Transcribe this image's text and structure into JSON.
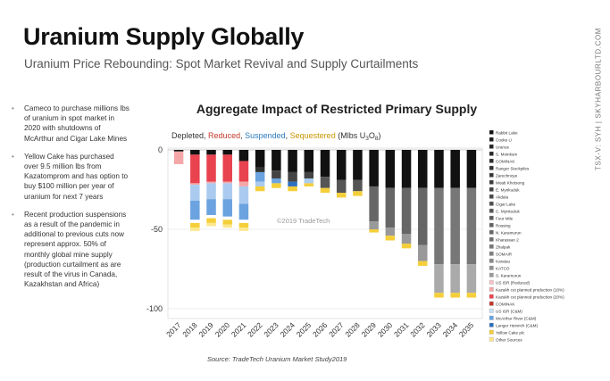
{
  "slide": {
    "title": "Uranium Supply Globally",
    "subtitle": "Uranium Price Rebounding: Spot Market Revival and Supply Curtailments",
    "side_label": "TSX-V: SYH  |  SKYHARBOURLTD.COM",
    "bullets": [
      "Cameco to purchase millions lbs of uranium in spot market in 2020 with shutdowns of McArthur and Cigar Lake Mines",
      "Yellow Cake has purchased over 9.5 million lbs from Kazatomprom and has option to buy $100 million per year of uranium for next 7 years",
      "Recent production suspensions as a result of the pandemic in additional to previous cuts now represent approx. 50% of monthly global mine supply (production curtailment as are result of the virus in Canada, Kazakhstan and Africa)"
    ],
    "source": "Source: TradeTech Uranium Market Study2019"
  },
  "chart_data": {
    "type": "bar",
    "title": "Aggregate Impact of Restricted Primary Supply",
    "header_words": [
      {
        "text": "Depleted",
        "color": "#333333"
      },
      {
        "text": ", ",
        "color": "#333333"
      },
      {
        "text": "Reduced",
        "color": "#c0392b"
      },
      {
        "text": ", ",
        "color": "#333333"
      },
      {
        "text": "Suspended",
        "color": "#2e7bbf"
      },
      {
        "text": ", ",
        "color": "#333333"
      },
      {
        "text": "Sequestered",
        "color": "#c89400"
      },
      {
        "text": " (Mlbs U",
        "color": "#333333"
      }
    ],
    "header_unit_sub": "3",
    "header_unit_after": "O",
    "header_unit_sub2": "8",
    "header_close": ")",
    "watermark": "©2019 TradeTech",
    "categories": [
      "2017",
      "2018",
      "2019",
      "2020",
      "2021",
      "2022",
      "2023",
      "2024",
      "2025",
      "2026",
      "2027",
      "2028",
      "2029",
      "2030",
      "2031",
      "2032",
      "2033",
      "2034",
      "2035"
    ],
    "yticks": [
      0,
      -50,
      -100
    ],
    "ylim": [
      -105,
      5
    ],
    "segments": [
      [
        {
          "v": 1,
          "c": "#111111"
        },
        {
          "v": 8,
          "c": "#f4a7a9"
        }
      ],
      [
        {
          "v": 3,
          "c": "#111111"
        },
        {
          "v": 18,
          "c": "#e8434f"
        },
        {
          "v": 1,
          "c": "#f4a7a9"
        },
        {
          "v": 10,
          "c": "#aacbef"
        },
        {
          "v": 12,
          "c": "#6aa3e0"
        },
        {
          "v": 2,
          "c": "#ffffff"
        },
        {
          "v": 3,
          "c": "#f4cf3a"
        },
        {
          "v": 2,
          "c": "#fce78a"
        }
      ],
      [
        {
          "v": 3,
          "c": "#111111"
        },
        {
          "v": 17,
          "c": "#e8434f"
        },
        {
          "v": 1,
          "c": "#f4a7a9"
        },
        {
          "v": 10,
          "c": "#aacbef"
        },
        {
          "v": 10,
          "c": "#6aa3e0"
        },
        {
          "v": 2,
          "c": "#ffffff"
        },
        {
          "v": 3,
          "c": "#f4cf3a"
        },
        {
          "v": 2,
          "c": "#fce78a"
        }
      ],
      [
        {
          "v": 3,
          "c": "#111111"
        },
        {
          "v": 17,
          "c": "#e8434f"
        },
        {
          "v": 1,
          "c": "#f4a7a9"
        },
        {
          "v": 10,
          "c": "#aacbef"
        },
        {
          "v": 11,
          "c": "#6aa3e0"
        },
        {
          "v": 2,
          "c": "#ffffff"
        },
        {
          "v": 3,
          "c": "#f4cf3a"
        },
        {
          "v": 2,
          "c": "#fce78a"
        }
      ],
      [
        {
          "v": 7,
          "c": "#111111"
        },
        {
          "v": 13,
          "c": "#e8434f"
        },
        {
          "v": 3,
          "c": "#f4a7a9"
        },
        {
          "v": 11,
          "c": "#aacbef"
        },
        {
          "v": 10,
          "c": "#6aa3e0"
        },
        {
          "v": 2,
          "c": "#ffffff"
        },
        {
          "v": 3,
          "c": "#f4cf3a"
        },
        {
          "v": 2,
          "c": "#fce78a"
        }
      ],
      [
        {
          "v": 11,
          "c": "#111111"
        },
        {
          "v": 3,
          "c": "#333333"
        },
        {
          "v": 6,
          "c": "#6aa3e0"
        },
        {
          "v": 3,
          "c": "#aacbef"
        },
        {
          "v": 3,
          "c": "#f4cf3a"
        }
      ],
      [
        {
          "v": 13,
          "c": "#111111"
        },
        {
          "v": 5,
          "c": "#444444"
        },
        {
          "v": 3,
          "c": "#6aa3e0"
        },
        {
          "v": 3,
          "c": "#f4cf3a"
        }
      ],
      [
        {
          "v": 14,
          "c": "#111111"
        },
        {
          "v": 6,
          "c": "#444444"
        },
        {
          "v": 3,
          "c": "#2e6fbf"
        },
        {
          "v": 3,
          "c": "#f4cf3a"
        }
      ],
      [
        {
          "v": 14,
          "c": "#111111"
        },
        {
          "v": 4,
          "c": "#444444"
        },
        {
          "v": 3,
          "c": "#aacbef"
        },
        {
          "v": 2,
          "c": "#f4cf3a"
        }
      ],
      [
        {
          "v": 17,
          "c": "#111111"
        },
        {
          "v": 7,
          "c": "#555555"
        },
        {
          "v": 3,
          "c": "#f4cf3a"
        }
      ],
      [
        {
          "v": 19,
          "c": "#111111"
        },
        {
          "v": 8,
          "c": "#555555"
        },
        {
          "v": 3,
          "c": "#f4cf3a"
        }
      ],
      [
        {
          "v": 19,
          "c": "#111111"
        },
        {
          "v": 7,
          "c": "#555555"
        },
        {
          "v": 3,
          "c": "#f4cf3a"
        }
      ],
      [
        {
          "v": 23,
          "c": "#111111"
        },
        {
          "v": 22,
          "c": "#666666"
        },
        {
          "v": 5,
          "c": "#999999"
        },
        {
          "v": 2,
          "c": "#f4cf3a"
        }
      ],
      [
        {
          "v": 24,
          "c": "#111111"
        },
        {
          "v": 25,
          "c": "#666666"
        },
        {
          "v": 5,
          "c": "#999999"
        },
        {
          "v": 3,
          "c": "#f4cf3a"
        }
      ],
      [
        {
          "v": 24,
          "c": "#111111"
        },
        {
          "v": 29,
          "c": "#666666"
        },
        {
          "v": 6,
          "c": "#999999"
        },
        {
          "v": 3,
          "c": "#f4cf3a"
        }
      ],
      [
        {
          "v": 24,
          "c": "#111111"
        },
        {
          "v": 36,
          "c": "#666666"
        },
        {
          "v": 10,
          "c": "#999999"
        },
        {
          "v": 3,
          "c": "#f4cf3a"
        }
      ],
      [
        {
          "v": 24,
          "c": "#111111"
        },
        {
          "v": 48,
          "c": "#777777"
        },
        {
          "v": 18,
          "c": "#aaaaaa"
        },
        {
          "v": 3,
          "c": "#f4cf3a"
        }
      ],
      [
        {
          "v": 24,
          "c": "#111111"
        },
        {
          "v": 48,
          "c": "#777777"
        },
        {
          "v": 18,
          "c": "#aaaaaa"
        },
        {
          "v": 3,
          "c": "#f4cf3a"
        }
      ],
      [
        {
          "v": 24,
          "c": "#111111"
        },
        {
          "v": 48,
          "c": "#777777"
        },
        {
          "v": 18,
          "c": "#aaaaaa"
        },
        {
          "v": 3,
          "c": "#f4cf3a"
        }
      ]
    ],
    "legend": [
      {
        "name": "Rabbit Lake",
        "color": "#111111"
      },
      {
        "name": "Cooke U",
        "color": "#1a1a1a"
      },
      {
        "name": "Uranus",
        "color": "#222222"
      },
      {
        "name": "S. Moinkum",
        "color": "#262626"
      },
      {
        "name": "COMINAK",
        "color": "#2b2b2b"
      },
      {
        "name": "Ranger Stockpiles",
        "color": "#303030"
      },
      {
        "name": "Zarechnoye",
        "color": "#363636"
      },
      {
        "name": "Moab Khotsong",
        "color": "#3c3c3c"
      },
      {
        "name": "E. Mynkuduk",
        "color": "#424242"
      },
      {
        "name": "Akdala",
        "color": "#484848"
      },
      {
        "name": "Cigar Lake",
        "color": "#4e4e4e"
      },
      {
        "name": "C. Mynkuduk",
        "color": "#555555"
      },
      {
        "name": "Four Mile",
        "color": "#5b5b5b"
      },
      {
        "name": "Rossing",
        "color": "#626262"
      },
      {
        "name": "N. Karamurun",
        "color": "#696969"
      },
      {
        "name": "Kharassan 2",
        "color": "#707070"
      },
      {
        "name": "Zhalpak",
        "color": "#777777"
      },
      {
        "name": "SOMAIR",
        "color": "#7f7f7f"
      },
      {
        "name": "Karatau",
        "color": "#878787"
      },
      {
        "name": "KATCO",
        "color": "#909090"
      },
      {
        "name": "S. Karamurun",
        "color": "#9a9a9a"
      },
      {
        "name": "US ISR (Reduced)",
        "color": "#f6c4c6"
      },
      {
        "name": "Kazakh cut planned production (10%)",
        "color": "#f4a7a9"
      },
      {
        "name": "Kazakh cut planned production (20%)",
        "color": "#e8434f"
      },
      {
        "name": "COMINAK",
        "color": "#c0392b"
      },
      {
        "name": "US ISR (C&M)",
        "color": "#c9dcf3"
      },
      {
        "name": "McArthur River (C&M)",
        "color": "#6aa3e0"
      },
      {
        "name": "Langer Heinrich (C&M)",
        "color": "#2e6fbf"
      },
      {
        "name": "Yellow Cake plc",
        "color": "#f4cf3a"
      },
      {
        "name": "Other Sources",
        "color": "#fce78a"
      }
    ]
  }
}
